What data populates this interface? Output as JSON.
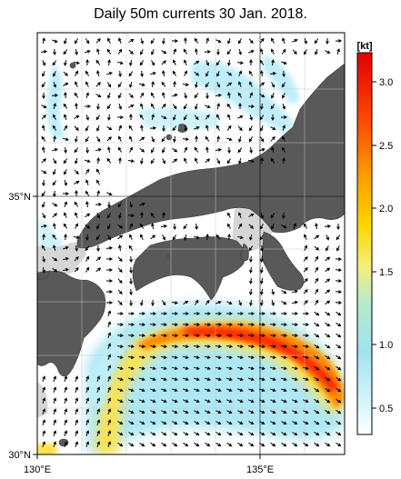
{
  "title": "Daily 50m currents 30 Jan. 2018.",
  "axes": {
    "y_labels": [
      "35°N",
      "30°N"
    ],
    "x_labels": [
      "130°E",
      "135°E"
    ]
  },
  "colorbar": {
    "unit": "[kt]",
    "ticks": [
      "3.0",
      "2.5",
      "2.0",
      "1.5",
      "1.0",
      "0.5"
    ],
    "range": [
      0.25,
      3.3
    ],
    "colors": [
      "#ffffff",
      "#bfeefa",
      "#8fe0ee",
      "#f4f07a",
      "#ffd400",
      "#ff8a00",
      "#ff3000",
      "#e00000"
    ]
  },
  "colors": {
    "land": "#595959",
    "shelf": "#d6d6d6",
    "sea": "#ffffff",
    "grid": "#000000",
    "arrow": "#000000"
  }
}
